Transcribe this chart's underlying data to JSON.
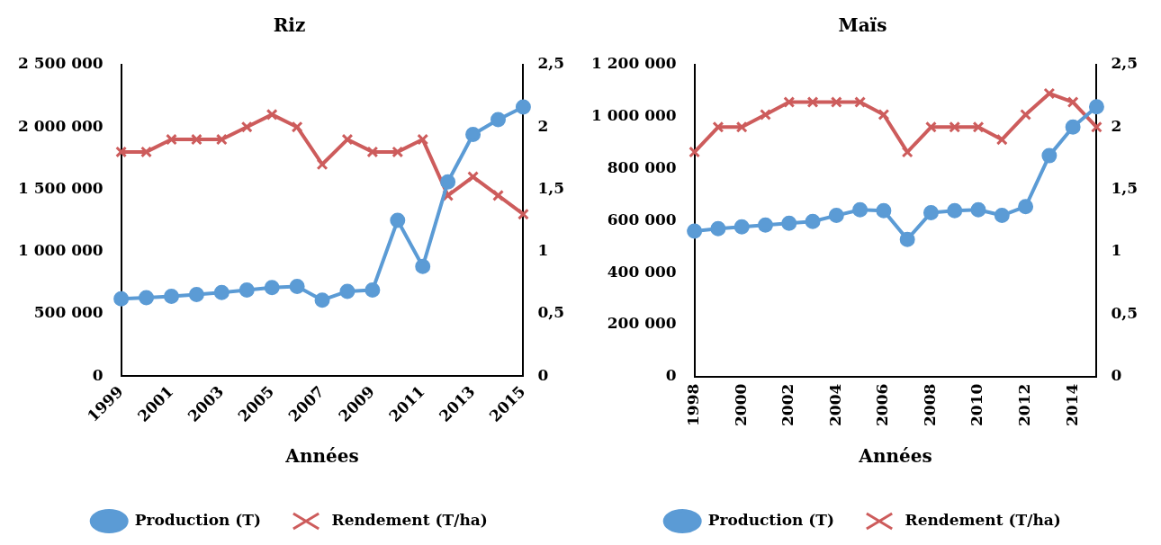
{
  "chart_data": [
    {
      "type": "line",
      "title": "Riz",
      "xlabel": "Années",
      "legend": "bottom",
      "grid": false,
      "categories": [
        "1999",
        null,
        "2001",
        null,
        "2003",
        null,
        "2005",
        null,
        "2007",
        null,
        "2009",
        null,
        "2011",
        null,
        "2013",
        null,
        "2015"
      ],
      "ylim": [
        0,
        2500000
      ],
      "yticks": [
        {
          "value": 0,
          "label": "0"
        },
        {
          "value": 500000,
          "label": "500 000"
        },
        {
          "value": 1000000,
          "label": "1 000 000"
        },
        {
          "value": 1500000,
          "label": "1 500 000"
        },
        {
          "value": 2000000,
          "label": "2 000 000"
        },
        {
          "value": 2500000,
          "label": "2 500 000"
        }
      ],
      "y2lim": [
        0,
        2.5
      ],
      "y2ticks": [
        0,
        {
          "value": 0.5,
          "label": "0,5"
        },
        1,
        {
          "value": 1.5,
          "label": "1,5"
        },
        2,
        {
          "value": 2.5,
          "label": "2,5"
        }
      ],
      "series": [
        {
          "name": "Production (T)",
          "color": "#5b9bd5",
          "marker": "circle",
          "values": [
            620000,
            630000,
            640000,
            655000,
            670000,
            690000,
            710000,
            720000,
            610000,
            680000,
            690000,
            1250000,
            880000,
            1560000,
            1940000,
            2060000,
            2160000
          ]
        },
        {
          "name": "Rendement (T/ha)",
          "color": "#cd5c5c",
          "marker": "cross",
          "axis": "y2",
          "values": [
            1.8,
            1.8,
            1.9,
            1.9,
            1.9,
            2.0,
            2.1,
            2.0,
            1.7,
            1.9,
            1.8,
            1.8,
            1.9,
            1.45,
            1.6,
            1.45,
            1.3
          ]
        }
      ]
    },
    {
      "type": "line",
      "title": "Maïs",
      "xlabel": "Années",
      "legend": "bottom",
      "grid": false,
      "categories": [
        "1998",
        null,
        "2000",
        null,
        "2002",
        null,
        "2004",
        null,
        "2006",
        null,
        "2008",
        null,
        "2010",
        null,
        "2012",
        null,
        "2014",
        null
      ],
      "ylim": [
        0,
        1200000
      ],
      "yticks": [
        {
          "value": 0,
          "label": "0"
        },
        {
          "value": 200000,
          "label": "200 000"
        },
        {
          "value": 400000,
          "label": "400 000"
        },
        {
          "value": 600000,
          "label": "600 000"
        },
        {
          "value": 800000,
          "label": "800 000"
        },
        {
          "value": 1000000,
          "label": "1 000 000"
        },
        {
          "value": 1200000,
          "label": "1 200 000"
        }
      ],
      "y2lim": [
        0,
        2.5
      ],
      "y2ticks": [
        0,
        {
          "value": 0.5,
          "label": "0,5"
        },
        1,
        {
          "value": 1.5,
          "label": "1,5"
        },
        2,
        {
          "value": 2.5,
          "label": "2,5"
        }
      ],
      "series": [
        {
          "name": "Production (T)",
          "color": "#5b9bd5",
          "marker": "circle",
          "values": [
            560000,
            569000,
            576000,
            583000,
            590000,
            597000,
            620000,
            642000,
            638000,
            528000,
            631000,
            638000,
            642000,
            620000,
            654000,
            850000,
            960000,
            1038000
          ]
        },
        {
          "name": "Rendement (T/ha)",
          "color": "#cd5c5c",
          "marker": "cross",
          "axis": "y2",
          "values": [
            1.8,
            2.0,
            2.0,
            2.1,
            2.2,
            2.2,
            2.2,
            2.2,
            2.1,
            1.8,
            2.0,
            2.0,
            2.0,
            1.9,
            2.1,
            2.27,
            2.2,
            2.0
          ]
        }
      ]
    }
  ]
}
